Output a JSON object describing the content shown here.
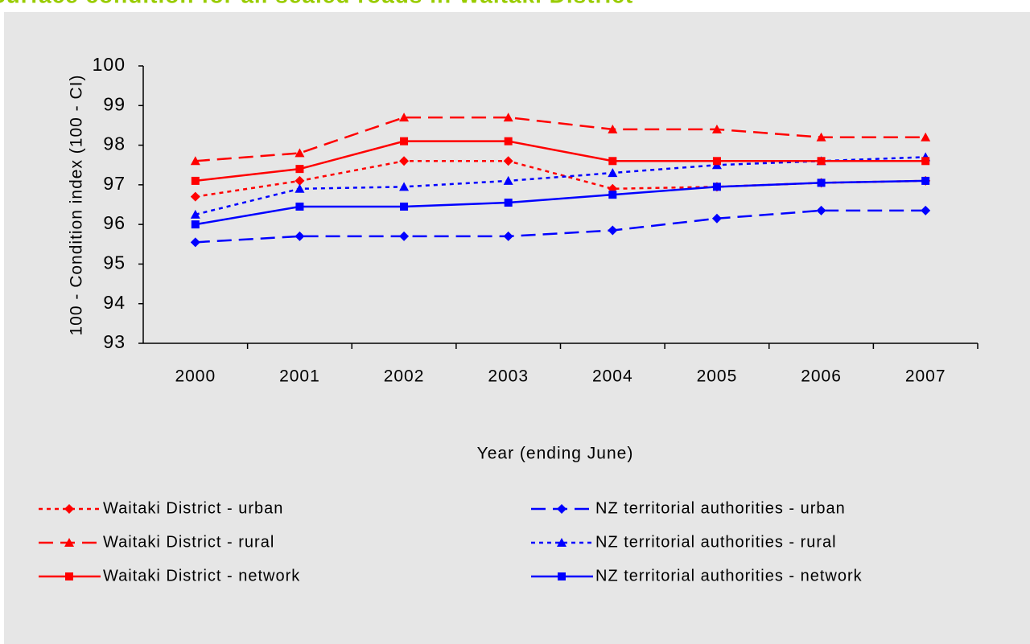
{
  "chart_data": {
    "type": "line",
    "title": "Surface condition for all sealed roads in Waitaki District",
    "xlabel": "Year (ending June)",
    "ylabel": "100 - Condition index (100 - CI)",
    "categories": [
      "2000",
      "2001",
      "2002",
      "2003",
      "2004",
      "2005",
      "2006",
      "2007"
    ],
    "ylim": [
      93,
      100
    ],
    "yticks": [
      93,
      94,
      95,
      96,
      97,
      98,
      99,
      100
    ],
    "series": [
      {
        "name": "Waitaki District - urban",
        "color": "#ff0000",
        "dash": "dotted",
        "marker": "diamond",
        "values": [
          96.7,
          97.1,
          97.6,
          97.6,
          96.9,
          96.95,
          97.05,
          97.1
        ]
      },
      {
        "name": "NZ territorial authorities - urban",
        "color": "#0000ff",
        "dash": "dashed",
        "marker": "diamond",
        "values": [
          95.55,
          95.7,
          95.7,
          95.7,
          95.85,
          96.15,
          96.35,
          96.35
        ]
      },
      {
        "name": "Waitaki District - rural",
        "color": "#ff0000",
        "dash": "dashed",
        "marker": "triangle",
        "values": [
          97.6,
          97.8,
          98.7,
          98.7,
          98.4,
          98.4,
          98.2,
          98.2
        ]
      },
      {
        "name": "NZ territorial authorities - rural",
        "color": "#0000ff",
        "dash": "dotted",
        "marker": "triangle",
        "values": [
          96.25,
          96.9,
          96.95,
          97.1,
          97.3,
          97.5,
          97.6,
          97.7
        ]
      },
      {
        "name": "Waitaki District - network",
        "color": "#ff0000",
        "dash": "solid",
        "marker": "square",
        "values": [
          97.1,
          97.4,
          98.1,
          98.1,
          97.6,
          97.6,
          97.6,
          97.6
        ]
      },
      {
        "name": "NZ territorial authorities - network",
        "color": "#0000ff",
        "dash": "solid",
        "marker": "square",
        "values": [
          96.0,
          96.45,
          96.45,
          96.55,
          96.75,
          96.95,
          97.05,
          97.1
        ]
      }
    ]
  }
}
